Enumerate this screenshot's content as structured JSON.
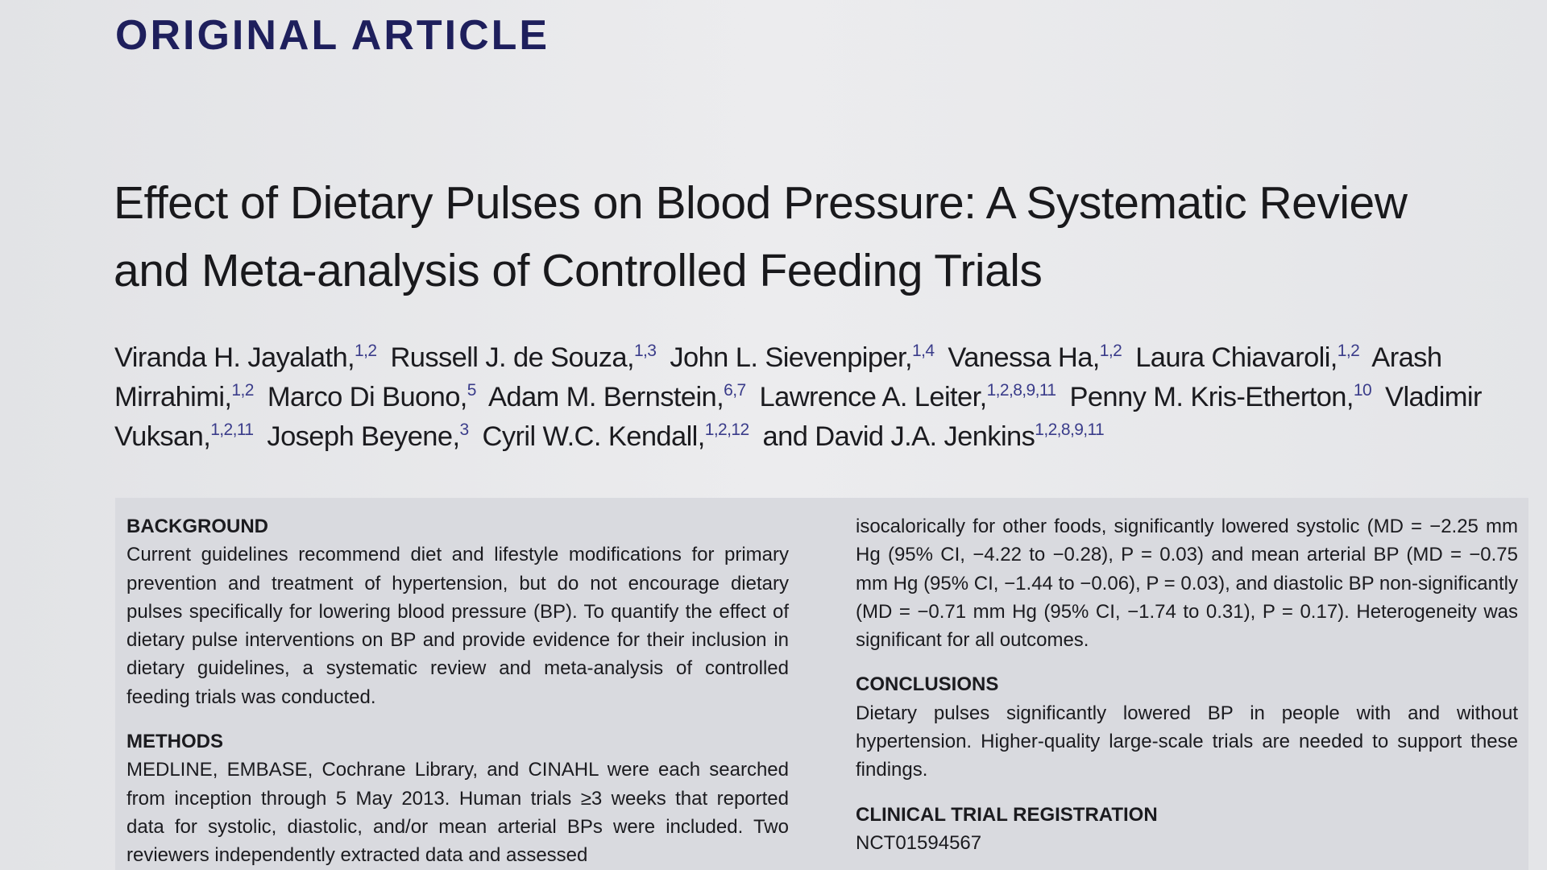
{
  "header": {
    "label": "ORIGINAL ARTICLE"
  },
  "article": {
    "title": "Effect of Dietary Pulses on Blood Pressure: A Systematic Review and Meta-analysis of Controlled Feeding Trials",
    "authors": [
      {
        "name": "Viranda H. Jayalath,",
        "affiliations": "1,2"
      },
      {
        "name": "Russell J. de Souza,",
        "affiliations": "1,3"
      },
      {
        "name": "John L. Sievenpiper,",
        "affiliations": "1,4"
      },
      {
        "name": "Vanessa Ha,",
        "affiliations": "1,2"
      },
      {
        "name": "Laura Chiavaroli,",
        "affiliations": "1,2"
      },
      {
        "name": "Arash Mirrahimi,",
        "affiliations": "1,2"
      },
      {
        "name": "Marco Di Buono,",
        "affiliations": "5"
      },
      {
        "name": "Adam M. Bernstein,",
        "affiliations": "6,7"
      },
      {
        "name": "Lawrence A. Leiter,",
        "affiliations": "1,2,8,9,11"
      },
      {
        "name": "Penny M. Kris-Etherton,",
        "affiliations": "10"
      },
      {
        "name": "Vladimir Vuksan,",
        "affiliations": "1,2,11"
      },
      {
        "name": "Joseph Beyene,",
        "affiliations": "3"
      },
      {
        "name": "Cyril W.C. Kendall,",
        "affiliations": "1,2,12"
      },
      {
        "name": "and David J.A. Jenkins",
        "affiliations": "1,2,8,9,11"
      }
    ]
  },
  "abstract": {
    "left": [
      {
        "heading": "BACKGROUND",
        "text": "Current guidelines recommend diet and lifestyle modifications for primary prevention and treatment of hypertension, but do not encourage dietary pulses specifically for lowering blood pressure (BP). To quantify the effect of dietary pulse interventions on BP and provide evidence for their inclusion in dietary guidelines, a systematic review and meta-analysis of controlled feeding trials was conducted."
      },
      {
        "heading": "METHODS",
        "text": "MEDLINE, EMBASE, Cochrane Library, and CINAHL were each searched from inception through 5 May 2013. Human trials ≥3 weeks that reported data for systolic, diastolic, and/or mean arterial BPs were included. Two reviewers independently extracted data and assessed"
      }
    ],
    "continuation": "isocalorically for other foods, significantly lowered systolic (MD = −2.25 mm Hg (95% CI, −4.22 to −0.28), P = 0.03) and mean arterial BP (MD = −0.75 mm Hg (95% CI, −1.44 to −0.06), P = 0.03), and diastolic BP non-significantly (MD = −0.71 mm Hg (95% CI, −1.74 to 0.31), P = 0.17). Heterogeneity was significant for all outcomes.",
    "right": [
      {
        "heading": "CONCLUSIONS",
        "text": "Dietary pulses significantly lowered BP in people with and without hypertension. Higher-quality large-scale trials are needed to support these findings."
      },
      {
        "heading": "CLINICAL TRIAL REGISTRATION",
        "text": "NCT01594567"
      }
    ]
  }
}
